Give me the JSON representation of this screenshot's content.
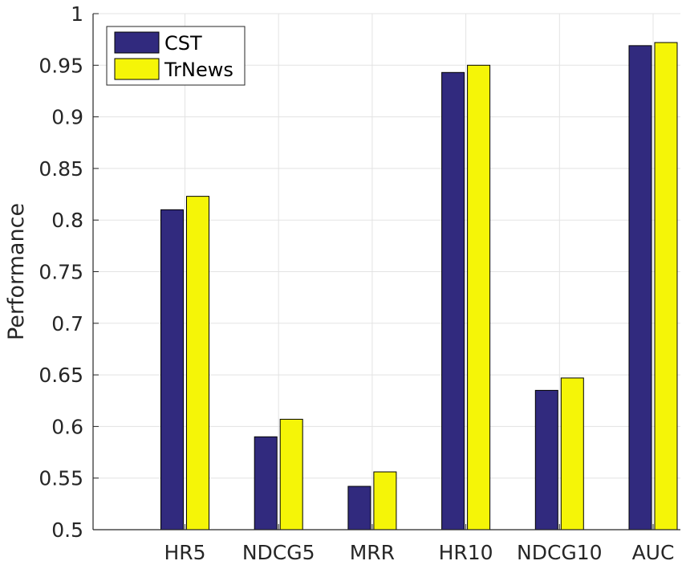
{
  "chart_data": {
    "type": "bar",
    "title": "",
    "xlabel": "",
    "ylabel": "Performance",
    "ylim": [
      0.5,
      1
    ],
    "yticks": [
      "0.5",
      "0.55",
      "0.6",
      "0.65",
      "0.7",
      "0.75",
      "0.8",
      "0.85",
      "0.9",
      "0.95",
      "1"
    ],
    "categories": [
      "HR5",
      "NDCG5",
      "MRR",
      "HR10",
      "NDCG10",
      "AUC"
    ],
    "series": [
      {
        "name": "CST",
        "color": "#312A7E",
        "values": [
          0.81,
          0.59,
          0.542,
          0.943,
          0.635,
          0.969
        ]
      },
      {
        "name": "TrNews",
        "color": "#F5F507",
        "values": [
          0.823,
          0.607,
          0.556,
          0.95,
          0.647,
          0.972
        ]
      }
    ],
    "grid": true,
    "legend": "top-left"
  }
}
